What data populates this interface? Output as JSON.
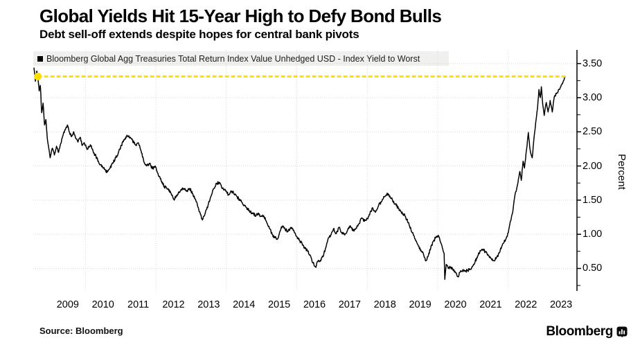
{
  "header": {
    "title": "Global Yields Hit 15-Year High to Defy Bond Bulls",
    "subtitle": "Debt sell-off extends despite hopes for central bank pivots"
  },
  "legend": {
    "swatch_color": "#000000",
    "label": "Bloomberg Global Agg Treasuries Total Return Index Value Unhedged USD - Index Yield to Worst"
  },
  "source": {
    "label": "Source: Bloomberg"
  },
  "branding": {
    "wordmark": "Bloomberg",
    "logo_icon": "bloomberg-bars-icon"
  },
  "colors": {
    "series": "#000000",
    "peak_line": "#ffdf00",
    "grid": "#d8d8d4",
    "legend_bg": "#f0f0ee"
  },
  "chart_data": {
    "type": "line",
    "title": "Global Yields Hit 15-Year High to Defy Bond Bulls",
    "xlabel": "",
    "ylabel": "Percent",
    "xlim": [
      2008.52,
      2023.95
    ],
    "ylim": [
      0.17,
      3.7
    ],
    "grid": "dotted",
    "legend_position": "top-left",
    "x_tick_labels": [
      "2009",
      "2010",
      "2011",
      "2012",
      "2013",
      "2014",
      "2015",
      "2016",
      "2017",
      "2018",
      "2019",
      "2020",
      "2021",
      "2022",
      "2023"
    ],
    "x_tick_positions": [
      2009.5,
      2010.5,
      2011.5,
      2012.5,
      2013.5,
      2014.5,
      2015.5,
      2016.5,
      2017.5,
      2018.5,
      2019.5,
      2020.5,
      2021.5,
      2022.5,
      2023.5
    ],
    "x_gridline_positions": [
      2010,
      2012,
      2014,
      2016,
      2018,
      2020,
      2022
    ],
    "y_ticks": [
      0.5,
      1.0,
      1.5,
      2.0,
      2.5,
      3.0,
      3.5
    ],
    "y_tick_labels": [
      "0.50",
      "1.00",
      "1.50",
      "2.00",
      "2.50",
      "3.00",
      "3.50"
    ],
    "y_minor_ticks": [
      0.25,
      0.75,
      1.25,
      1.75,
      2.25,
      2.75,
      3.25
    ],
    "noise_hint": 0.022,
    "annotations": [
      {
        "type": "dashed-hline",
        "name": "2008-peak-reference-line",
        "y": 3.31,
        "x_start": 2008.65,
        "x_end": 2023.62,
        "color": "#ffdf00"
      },
      {
        "type": "dot",
        "name": "2008-peak-marker",
        "x": 2008.65,
        "y": 3.31,
        "color": "#ffdf00"
      }
    ],
    "series": [
      {
        "name": "Bloomberg Global Agg Treasuries Total Return Index Value Unhedged USD - Index Yield to Worst",
        "color": "#000000",
        "points": [
          [
            2008.54,
            3.44
          ],
          [
            2008.58,
            3.24
          ],
          [
            2008.62,
            3.39
          ],
          [
            2008.65,
            3.31
          ],
          [
            2008.69,
            3.1
          ],
          [
            2008.72,
            3.18
          ],
          [
            2008.76,
            2.78
          ],
          [
            2008.8,
            2.92
          ],
          [
            2008.84,
            2.6
          ],
          [
            2008.88,
            2.68
          ],
          [
            2008.92,
            2.4
          ],
          [
            2008.96,
            2.26
          ],
          [
            2009.0,
            2.12
          ],
          [
            2009.06,
            2.26
          ],
          [
            2009.12,
            2.16
          ],
          [
            2009.18,
            2.29
          ],
          [
            2009.24,
            2.2
          ],
          [
            2009.3,
            2.33
          ],
          [
            2009.36,
            2.44
          ],
          [
            2009.43,
            2.53
          ],
          [
            2009.49,
            2.6
          ],
          [
            2009.55,
            2.49
          ],
          [
            2009.61,
            2.43
          ],
          [
            2009.67,
            2.5
          ],
          [
            2009.73,
            2.4
          ],
          [
            2009.79,
            2.35
          ],
          [
            2009.85,
            2.42
          ],
          [
            2009.91,
            2.3
          ],
          [
            2009.97,
            2.34
          ],
          [
            2010.06,
            2.25
          ],
          [
            2010.14,
            2.31
          ],
          [
            2010.22,
            2.21
          ],
          [
            2010.3,
            2.14
          ],
          [
            2010.38,
            2.05
          ],
          [
            2010.46,
            1.99
          ],
          [
            2010.54,
            1.95
          ],
          [
            2010.62,
            1.91
          ],
          [
            2010.7,
            1.97
          ],
          [
            2010.78,
            2.04
          ],
          [
            2010.86,
            2.12
          ],
          [
            2010.94,
            2.2
          ],
          [
            2011.02,
            2.3
          ],
          [
            2011.1,
            2.38
          ],
          [
            2011.18,
            2.45
          ],
          [
            2011.26,
            2.41
          ],
          [
            2011.34,
            2.37
          ],
          [
            2011.42,
            2.31
          ],
          [
            2011.5,
            2.34
          ],
          [
            2011.58,
            2.22
          ],
          [
            2011.66,
            2.06
          ],
          [
            2011.74,
            2.0
          ],
          [
            2011.82,
            2.04
          ],
          [
            2011.9,
            1.96
          ],
          [
            2011.98,
            2.0
          ],
          [
            2012.06,
            1.89
          ],
          [
            2012.15,
            1.78
          ],
          [
            2012.24,
            1.7
          ],
          [
            2012.33,
            1.66
          ],
          [
            2012.42,
            1.61
          ],
          [
            2012.51,
            1.51
          ],
          [
            2012.6,
            1.56
          ],
          [
            2012.69,
            1.63
          ],
          [
            2012.78,
            1.67
          ],
          [
            2012.87,
            1.63
          ],
          [
            2012.96,
            1.67
          ],
          [
            2013.05,
            1.59
          ],
          [
            2013.14,
            1.48
          ],
          [
            2013.23,
            1.33
          ],
          [
            2013.32,
            1.21
          ],
          [
            2013.4,
            1.31
          ],
          [
            2013.48,
            1.42
          ],
          [
            2013.56,
            1.55
          ],
          [
            2013.64,
            1.67
          ],
          [
            2013.72,
            1.74
          ],
          [
            2013.8,
            1.76
          ],
          [
            2013.88,
            1.67
          ],
          [
            2013.97,
            1.65
          ],
          [
            2014.06,
            1.58
          ],
          [
            2014.15,
            1.63
          ],
          [
            2014.25,
            1.59
          ],
          [
            2014.35,
            1.52
          ],
          [
            2014.45,
            1.46
          ],
          [
            2014.55,
            1.4
          ],
          [
            2014.65,
            1.35
          ],
          [
            2014.75,
            1.3
          ],
          [
            2014.84,
            1.27
          ],
          [
            2014.91,
            1.31
          ],
          [
            2014.98,
            1.26
          ],
          [
            2015.06,
            1.27
          ],
          [
            2015.14,
            1.18
          ],
          [
            2015.22,
            1.09
          ],
          [
            2015.3,
            1.0
          ],
          [
            2015.38,
            0.95
          ],
          [
            2015.45,
            0.93
          ],
          [
            2015.52,
            1.04
          ],
          [
            2015.59,
            1.12
          ],
          [
            2015.67,
            1.07
          ],
          [
            2015.75,
            1.04
          ],
          [
            2015.83,
            1.1
          ],
          [
            2015.91,
            1.06
          ],
          [
            2015.99,
            0.97
          ],
          [
            2016.07,
            0.91
          ],
          [
            2016.15,
            0.86
          ],
          [
            2016.23,
            0.79
          ],
          [
            2016.31,
            0.75
          ],
          [
            2016.39,
            0.68
          ],
          [
            2016.46,
            0.58
          ],
          [
            2016.53,
            0.52
          ],
          [
            2016.6,
            0.6
          ],
          [
            2016.67,
            0.62
          ],
          [
            2016.74,
            0.67
          ],
          [
            2016.81,
            0.79
          ],
          [
            2016.88,
            0.92
          ],
          [
            2016.96,
            0.98
          ],
          [
            2017.04,
            1.08
          ],
          [
            2017.12,
            1.01
          ],
          [
            2017.2,
            1.1
          ],
          [
            2017.28,
            1.02
          ],
          [
            2017.36,
            0.99
          ],
          [
            2017.44,
            1.06
          ],
          [
            2017.52,
            1.12
          ],
          [
            2017.6,
            1.05
          ],
          [
            2017.68,
            1.09
          ],
          [
            2017.76,
            1.15
          ],
          [
            2017.84,
            1.24
          ],
          [
            2017.92,
            1.19
          ],
          [
            2018.0,
            1.23
          ],
          [
            2018.08,
            1.32
          ],
          [
            2018.16,
            1.38
          ],
          [
            2018.24,
            1.33
          ],
          [
            2018.32,
            1.42
          ],
          [
            2018.4,
            1.48
          ],
          [
            2018.48,
            1.55
          ],
          [
            2018.56,
            1.6
          ],
          [
            2018.64,
            1.56
          ],
          [
            2018.72,
            1.49
          ],
          [
            2018.8,
            1.44
          ],
          [
            2018.88,
            1.38
          ],
          [
            2018.96,
            1.33
          ],
          [
            2019.04,
            1.29
          ],
          [
            2019.12,
            1.22
          ],
          [
            2019.2,
            1.12
          ],
          [
            2019.28,
            1.02
          ],
          [
            2019.36,
            0.93
          ],
          [
            2019.44,
            0.84
          ],
          [
            2019.52,
            0.77
          ],
          [
            2019.6,
            0.7
          ],
          [
            2019.66,
            0.61
          ],
          [
            2019.72,
            0.67
          ],
          [
            2019.8,
            0.8
          ],
          [
            2019.88,
            0.9
          ],
          [
            2019.96,
            0.97
          ],
          [
            2020.04,
            0.96
          ],
          [
            2020.1,
            0.86
          ],
          [
            2020.15,
            0.76
          ],
          [
            2020.18,
            0.72
          ],
          [
            2020.2,
            0.34
          ],
          [
            2020.24,
            0.56
          ],
          [
            2020.3,
            0.5
          ],
          [
            2020.37,
            0.52
          ],
          [
            2020.44,
            0.47
          ],
          [
            2020.51,
            0.44
          ],
          [
            2020.57,
            0.38
          ],
          [
            2020.64,
            0.45
          ],
          [
            2020.71,
            0.48
          ],
          [
            2020.78,
            0.46
          ],
          [
            2020.85,
            0.47
          ],
          [
            2020.92,
            0.49
          ],
          [
            2020.99,
            0.53
          ],
          [
            2021.06,
            0.6
          ],
          [
            2021.13,
            0.68
          ],
          [
            2021.2,
            0.76
          ],
          [
            2021.28,
            0.78
          ],
          [
            2021.36,
            0.74
          ],
          [
            2021.44,
            0.69
          ],
          [
            2021.52,
            0.64
          ],
          [
            2021.6,
            0.61
          ],
          [
            2021.68,
            0.67
          ],
          [
            2021.76,
            0.74
          ],
          [
            2021.84,
            0.86
          ],
          [
            2021.92,
            0.91
          ],
          [
            2022.0,
            1.02
          ],
          [
            2022.06,
            1.19
          ],
          [
            2022.12,
            1.31
          ],
          [
            2022.18,
            1.54
          ],
          [
            2022.24,
            1.67
          ],
          [
            2022.29,
            1.81
          ],
          [
            2022.33,
            1.92
          ],
          [
            2022.37,
            1.79
          ],
          [
            2022.42,
            2.07
          ],
          [
            2022.46,
            1.97
          ],
          [
            2022.52,
            2.24
          ],
          [
            2022.57,
            2.49
          ],
          [
            2022.62,
            2.24
          ],
          [
            2022.68,
            2.12
          ],
          [
            2022.74,
            2.45
          ],
          [
            2022.79,
            2.68
          ],
          [
            2022.83,
            2.84
          ],
          [
            2022.87,
            3.12
          ],
          [
            2022.91,
            3.0
          ],
          [
            2022.94,
            3.16
          ],
          [
            2022.98,
            2.89
          ],
          [
            2023.02,
            2.74
          ],
          [
            2023.08,
            2.93
          ],
          [
            2023.13,
            2.79
          ],
          [
            2023.19,
            2.96
          ],
          [
            2023.25,
            2.79
          ],
          [
            2023.31,
            3.02
          ],
          [
            2023.38,
            3.07
          ],
          [
            2023.45,
            3.12
          ],
          [
            2023.52,
            3.19
          ],
          [
            2023.57,
            3.25
          ],
          [
            2023.62,
            3.31
          ]
        ]
      }
    ]
  }
}
